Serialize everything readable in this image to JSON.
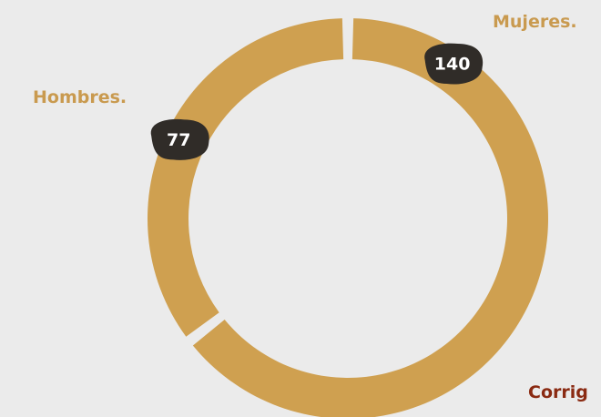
{
  "chart_data": {
    "type": "donut",
    "categories": [
      "Mujeres.",
      "Hombres."
    ],
    "values": [
      140,
      77
    ],
    "color": "#cfa050",
    "annotation": "Corrig"
  }
}
